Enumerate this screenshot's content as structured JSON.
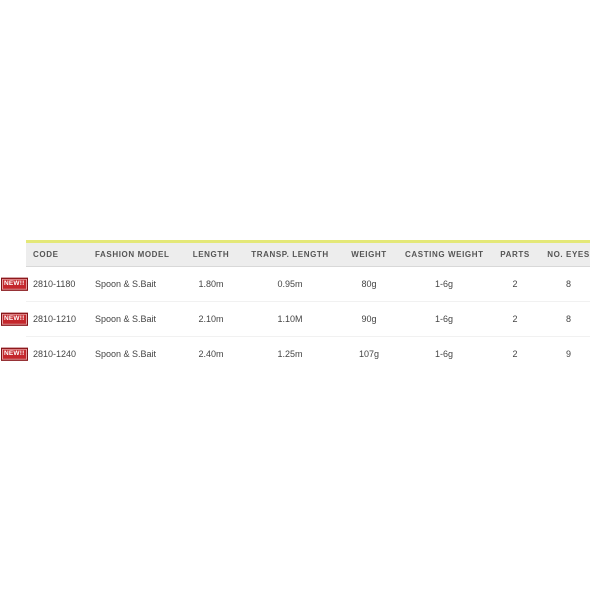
{
  "page": {
    "background": "#ffffff"
  },
  "badge": {
    "label": "NEW!!",
    "background": "#c4272c",
    "border_color": "#7d1316",
    "text_color": "#ffffff"
  },
  "table": {
    "accent_line_color": "#e4e878",
    "header_background": "#ededed",
    "columns": [
      {
        "label": "CODE",
        "align": "left"
      },
      {
        "label": "FASHION MODEL",
        "align": "left"
      },
      {
        "label": "LENGTH",
        "align": "center"
      },
      {
        "label": "TRANSP. LENGTH",
        "align": "center"
      },
      {
        "label": "WEIGHT",
        "align": "center"
      },
      {
        "label": "CASTING WEIGHT",
        "align": "center"
      },
      {
        "label": "PARTS",
        "align": "center"
      },
      {
        "label": "NO. EYES",
        "align": "center"
      }
    ],
    "rows": [
      {
        "is_new": true,
        "cells": [
          "2810-1180",
          "Spoon & S.Bait",
          "1.80m",
          "0.95m",
          "80g",
          "1-6g",
          "2",
          "8"
        ]
      },
      {
        "is_new": true,
        "cells": [
          "2810-1210",
          "Spoon & S.Bait",
          "2.10m",
          "1.10M",
          "90g",
          "1-6g",
          "2",
          "8"
        ]
      },
      {
        "is_new": true,
        "cells": [
          "2810-1240",
          "Spoon & S.Bait",
          "2.40m",
          "1.25m",
          "107g",
          "1-6g",
          "2",
          "9"
        ]
      }
    ]
  }
}
